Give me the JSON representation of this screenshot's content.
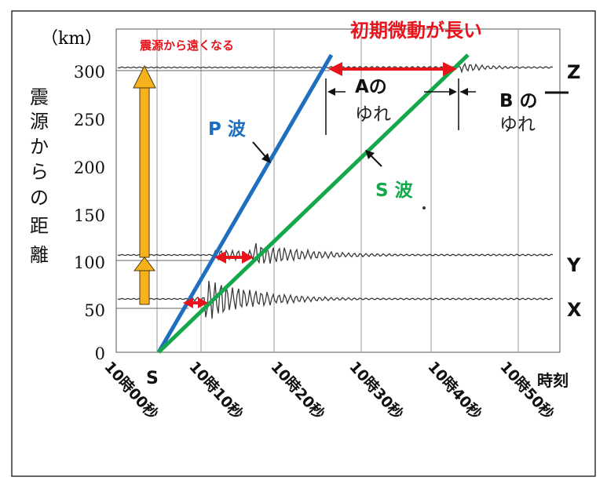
{
  "unit_label": "（km）",
  "y_axis_label": [
    "震",
    "源",
    "か",
    "ら",
    "の",
    "距",
    "離"
  ],
  "y_ticks": [
    "300",
    "250",
    "200",
    "150",
    "100",
    "50",
    "0"
  ],
  "x_ticks": [
    "10時00秒",
    "10時10秒",
    "10時20秒",
    "10時30秒",
    "10時40秒",
    "10時50秒"
  ],
  "x_axis_label": "時刻",
  "origin_label": "S",
  "annotations": {
    "farther": "震源から遠くなる",
    "longer_prelim": "初期微動が長い",
    "p_wave": "P 波",
    "s_wave": "S 波",
    "a_line1": "Aの",
    "a_line2": "ゆれ",
    "b_line1": "B の",
    "b_line2": "ゆれ"
  },
  "stations": {
    "x": "X",
    "y": "Y",
    "z": "Z"
  },
  "colors": {
    "p_wave": "#1f6fc0",
    "s_wave": "#14a84a",
    "emphasis": "#e8141c",
    "arrow_fill": "#f7b11b",
    "seismogram": "#3a3a3a"
  }
}
